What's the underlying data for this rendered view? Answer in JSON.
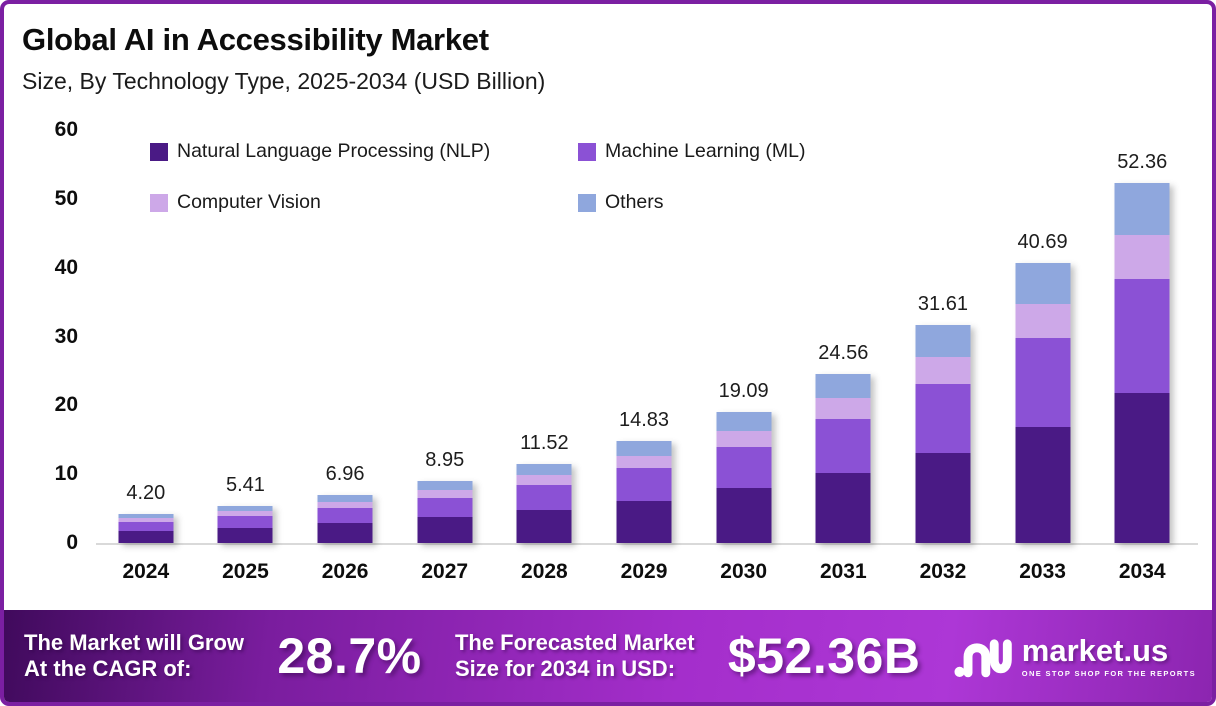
{
  "header": {
    "title": "Global AI in Accessibility Market",
    "subtitle": "Size, By Technology Type, 2025-2034 (USD Billion)"
  },
  "chart_data": {
    "type": "bar",
    "variant": "stacked-column",
    "title": "Global AI in Accessibility Market",
    "subtitle": "Size, By Technology Type, 2025-2034 (USD Billion)",
    "unit": "USD Billion",
    "categories": [
      "2024",
      "2025",
      "2026",
      "2027",
      "2028",
      "2029",
      "2030",
      "2031",
      "2032",
      "2033",
      "2034"
    ],
    "totals": [
      4.2,
      5.41,
      6.96,
      8.95,
      11.52,
      14.83,
      19.09,
      24.56,
      31.61,
      40.69,
      52.36
    ],
    "total_labels": [
      "4.20",
      "5.41",
      "6.96",
      "8.95",
      "11.52",
      "14.83",
      "19.09",
      "24.56",
      "31.61",
      "40.69",
      "52.36"
    ],
    "series": [
      {
        "key": "nlp",
        "name": "Natural Language Processing (NLP)",
        "color": "#4A1A85",
        "values": [
          1.74,
          2.25,
          2.89,
          3.71,
          4.78,
          6.15,
          7.92,
          10.19,
          13.12,
          16.89,
          21.73
        ]
      },
      {
        "key": "ml",
        "name": "Machine Learning (ML)",
        "color": "#8B51D5",
        "values": [
          1.33,
          1.71,
          2.21,
          2.84,
          3.65,
          4.7,
          6.05,
          7.79,
          10.02,
          12.9,
          16.6
        ]
      },
      {
        "key": "cv",
        "name": "Computer Vision",
        "color": "#CDA8E8",
        "values": [
          0.52,
          0.67,
          0.86,
          1.1,
          1.42,
          1.82,
          2.35,
          3.02,
          3.89,
          5.0,
          6.44
        ]
      },
      {
        "key": "others",
        "name": "Others",
        "color": "#8FA7DD",
        "values": [
          0.61,
          0.78,
          1.0,
          1.3,
          1.67,
          2.16,
          2.77,
          3.56,
          4.58,
          5.9,
          7.59
        ]
      }
    ],
    "ylim": [
      0,
      60
    ],
    "yticks": [
      0,
      10,
      20,
      30,
      40,
      50,
      60
    ],
    "grid": false,
    "legend_position": "top-inside"
  },
  "banner": {
    "cagr_label_line1": "The Market will Grow",
    "cagr_label_line2": "At the CAGR of:",
    "cagr_value": "28.7%",
    "forecast_label_line1": "The Forecasted Market",
    "forecast_label_line2": "Size for 2034 in USD:",
    "forecast_value": "$52.36B",
    "logo_text": "market.us",
    "logo_tagline": "ONE STOP SHOP FOR THE REPORTS"
  },
  "colors": {
    "frame_border": "#7B1FA2",
    "axis_line": "#D9D9D9",
    "banner_gradient_start": "#400A5C",
    "banner_gradient_mid": "#A42ECB",
    "banner_gradient_end": "#8C25B0",
    "text": "#0D0D0D"
  }
}
